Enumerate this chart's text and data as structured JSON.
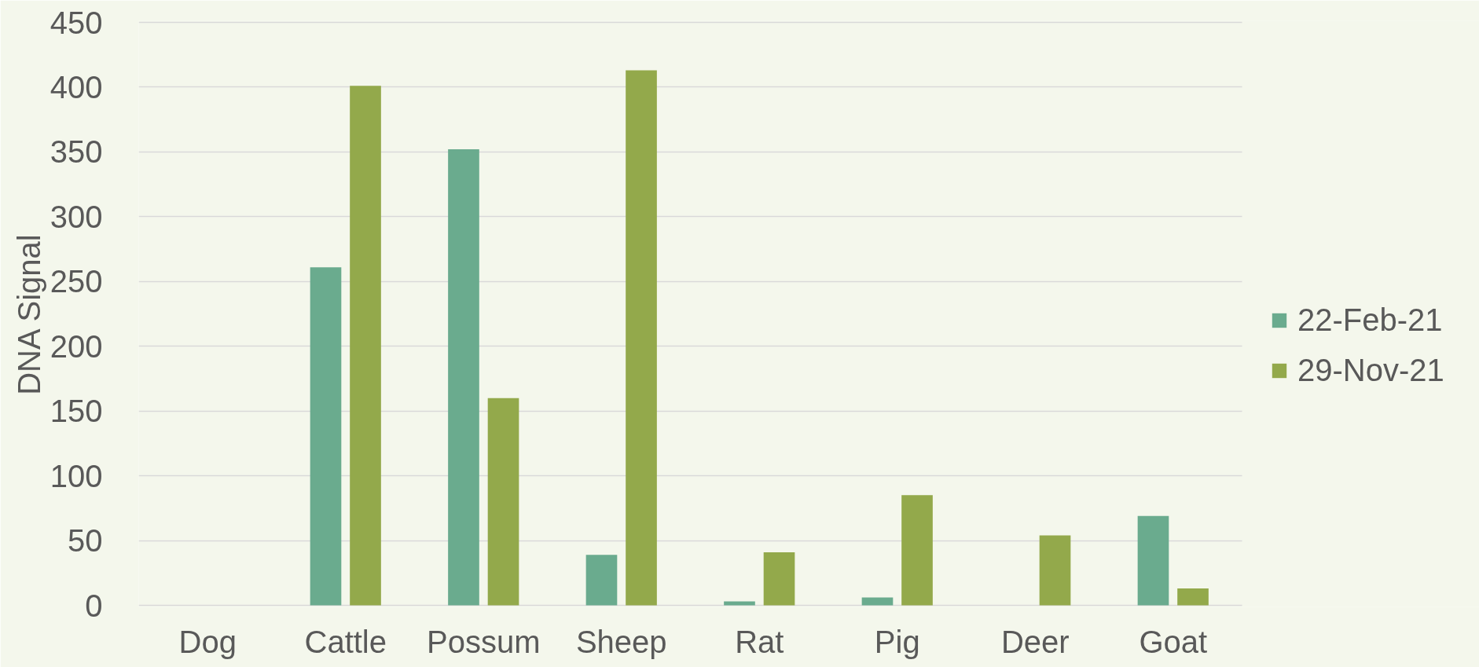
{
  "chart_data": {
    "type": "bar",
    "ylabel": "DNA Signal",
    "categories": [
      "Dog",
      "Cattle",
      "Possum",
      "Sheep",
      "Rat",
      "Pig",
      "Deer",
      "Goat"
    ],
    "series": [
      {
        "name": "22-Feb-21",
        "color": "#6aab8e",
        "values": [
          0,
          261,
          352,
          39,
          3,
          6,
          0,
          69
        ]
      },
      {
        "name": "29-Nov-21",
        "color": "#93a94b",
        "values": [
          0,
          401,
          160,
          413,
          41,
          85,
          54,
          13
        ]
      }
    ],
    "ylim": [
      0,
      450
    ],
    "yticks": [
      0,
      50,
      100,
      150,
      200,
      250,
      300,
      350,
      400,
      450
    ],
    "grid": "y",
    "legend": "right"
  }
}
